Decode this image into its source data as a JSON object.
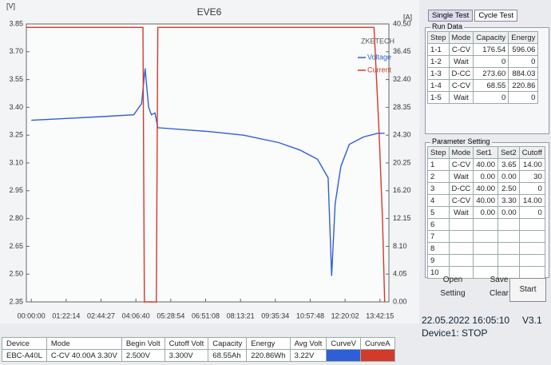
{
  "chart_data": {
    "type": "line",
    "title": "EVE6",
    "y_label": "[V]",
    "y2_label": "[A]",
    "watermark": "ZKETECH",
    "xlim": [
      -700,
      50600
    ],
    "ylim": [
      2.35,
      3.85
    ],
    "y2lim": [
      0,
      40.5
    ],
    "xticks": [
      {
        "value": 0,
        "label": "00:00:00"
      },
      {
        "value": 4934,
        "label": "01:22:14"
      },
      {
        "value": 9867,
        "label": "02:44:27"
      },
      {
        "value": 14800,
        "label": "04:06:40"
      },
      {
        "value": 19734,
        "label": "05:28:54"
      },
      {
        "value": 24668,
        "label": "06:51:08"
      },
      {
        "value": 29601,
        "label": "08:13:21"
      },
      {
        "value": 34534,
        "label": "09:35:34"
      },
      {
        "value": 39468,
        "label": "10:57:48"
      },
      {
        "value": 44402,
        "label": "12:20:02"
      },
      {
        "value": 49335,
        "label": "13:42:15"
      }
    ],
    "yticks": [
      {
        "value": 2.35,
        "label": "2.35"
      },
      {
        "value": 2.5,
        "label": "2.50"
      },
      {
        "value": 2.65,
        "label": "2.65"
      },
      {
        "value": 2.8,
        "label": "2.80"
      },
      {
        "value": 2.95,
        "label": "2.95"
      },
      {
        "value": 3.1,
        "label": "3.10"
      },
      {
        "value": 3.25,
        "label": "3.25"
      },
      {
        "value": 3.4,
        "label": "3.40"
      },
      {
        "value": 3.55,
        "label": "3.55"
      },
      {
        "value": 3.7,
        "label": "3.70"
      },
      {
        "value": 3.85,
        "label": "3.85"
      }
    ],
    "y2ticks": [
      {
        "value": 0,
        "label": "0.00"
      },
      {
        "value": 4.05,
        "label": "4.05"
      },
      {
        "value": 8.1,
        "label": "8.10"
      },
      {
        "value": 12.15,
        "label": "12.15"
      },
      {
        "value": 16.2,
        "label": "16.20"
      },
      {
        "value": 20.25,
        "label": "20.25"
      },
      {
        "value": 24.3,
        "label": "24.30"
      },
      {
        "value": 28.35,
        "label": "28.35"
      },
      {
        "value": 32.4,
        "label": "32.40"
      },
      {
        "value": 36.45,
        "label": "36.45"
      },
      {
        "value": 40.5,
        "label": "40.50"
      }
    ],
    "series": [
      {
        "name": "Voltage",
        "color": "#2f5fd6",
        "x": [
          0,
          5000,
          10000,
          14500,
          15600,
          16100,
          16600,
          17000,
          17500,
          17900,
          25000,
          30000,
          35000,
          38000,
          40500,
          42000,
          42500,
          43000,
          43800,
          45000,
          47000,
          49000,
          50000
        ],
        "values": [
          3.33,
          3.34,
          3.35,
          3.36,
          3.42,
          3.61,
          3.4,
          3.36,
          3.37,
          3.29,
          3.27,
          3.25,
          3.21,
          3.17,
          3.12,
          3.02,
          2.49,
          2.88,
          3.08,
          3.2,
          3.24,
          3.26,
          3.26
        ]
      },
      {
        "name": "Current",
        "color": "#d23a2a",
        "axis": "y2",
        "x": [
          -700,
          15800,
          16000,
          17700,
          17900,
          48500,
          49200,
          49700,
          50000
        ],
        "values": [
          40,
          40,
          0,
          0,
          40,
          40,
          25,
          12,
          0
        ]
      }
    ]
  },
  "tabs": [
    "Single Test",
    "Cycle Test"
  ],
  "run_data": {
    "title": "Run Data",
    "header": [
      "Step",
      "Mode",
      "Capacity",
      "Energy"
    ],
    "rows": [
      [
        "1-1",
        "C-CV",
        "176.54",
        "596.06"
      ],
      [
        "1-2",
        "Wait",
        "0",
        "0"
      ],
      [
        "1-3",
        "D-CC",
        "273.60",
        "884.03"
      ],
      [
        "1-4",
        "C-CV",
        "68.55",
        "220.86"
      ],
      [
        "1-5",
        "Wait",
        "0",
        "0"
      ]
    ]
  },
  "parameter_setting": {
    "title": "Parameter Setting",
    "header": [
      "Step",
      "Mode",
      "Set1",
      "Set2",
      "Cutoff"
    ],
    "rows": [
      [
        "1",
        "C-CV",
        "40.00",
        "3.65",
        "14.00"
      ],
      [
        "2",
        "Wait",
        "0.00",
        "0.00",
        "30"
      ],
      [
        "3",
        "D-CC",
        "40.00",
        "2.50",
        "0"
      ],
      [
        "4",
        "C-CV",
        "40.00",
        "3.30",
        "14.00"
      ],
      [
        "5",
        "Wait",
        "0.00",
        "0.00",
        "0"
      ],
      [
        "6"
      ],
      [
        "7"
      ],
      [
        "8"
      ],
      [
        "9"
      ],
      [
        "10"
      ]
    ]
  },
  "buttons": [
    "Open",
    "Save",
    "Setting",
    "Clear",
    "Start"
  ],
  "status": {
    "datetime": "22.05.2022 16:05:10",
    "version": "V3.1",
    "device_state": "Device1: STOP"
  },
  "device_table": {
    "header": [
      "Device",
      "Mode",
      "Begin Volt",
      "Cutoff Volt",
      "Capacity",
      "Energy",
      "Avg Volt",
      "CurveV",
      "CurveA"
    ],
    "row": [
      "EBC-A40L",
      "C-CV 40.00A 3.30V",
      "2.500V",
      "3.300V",
      "68.55Ah",
      "220.86Wh",
      "3.22V"
    ]
  }
}
